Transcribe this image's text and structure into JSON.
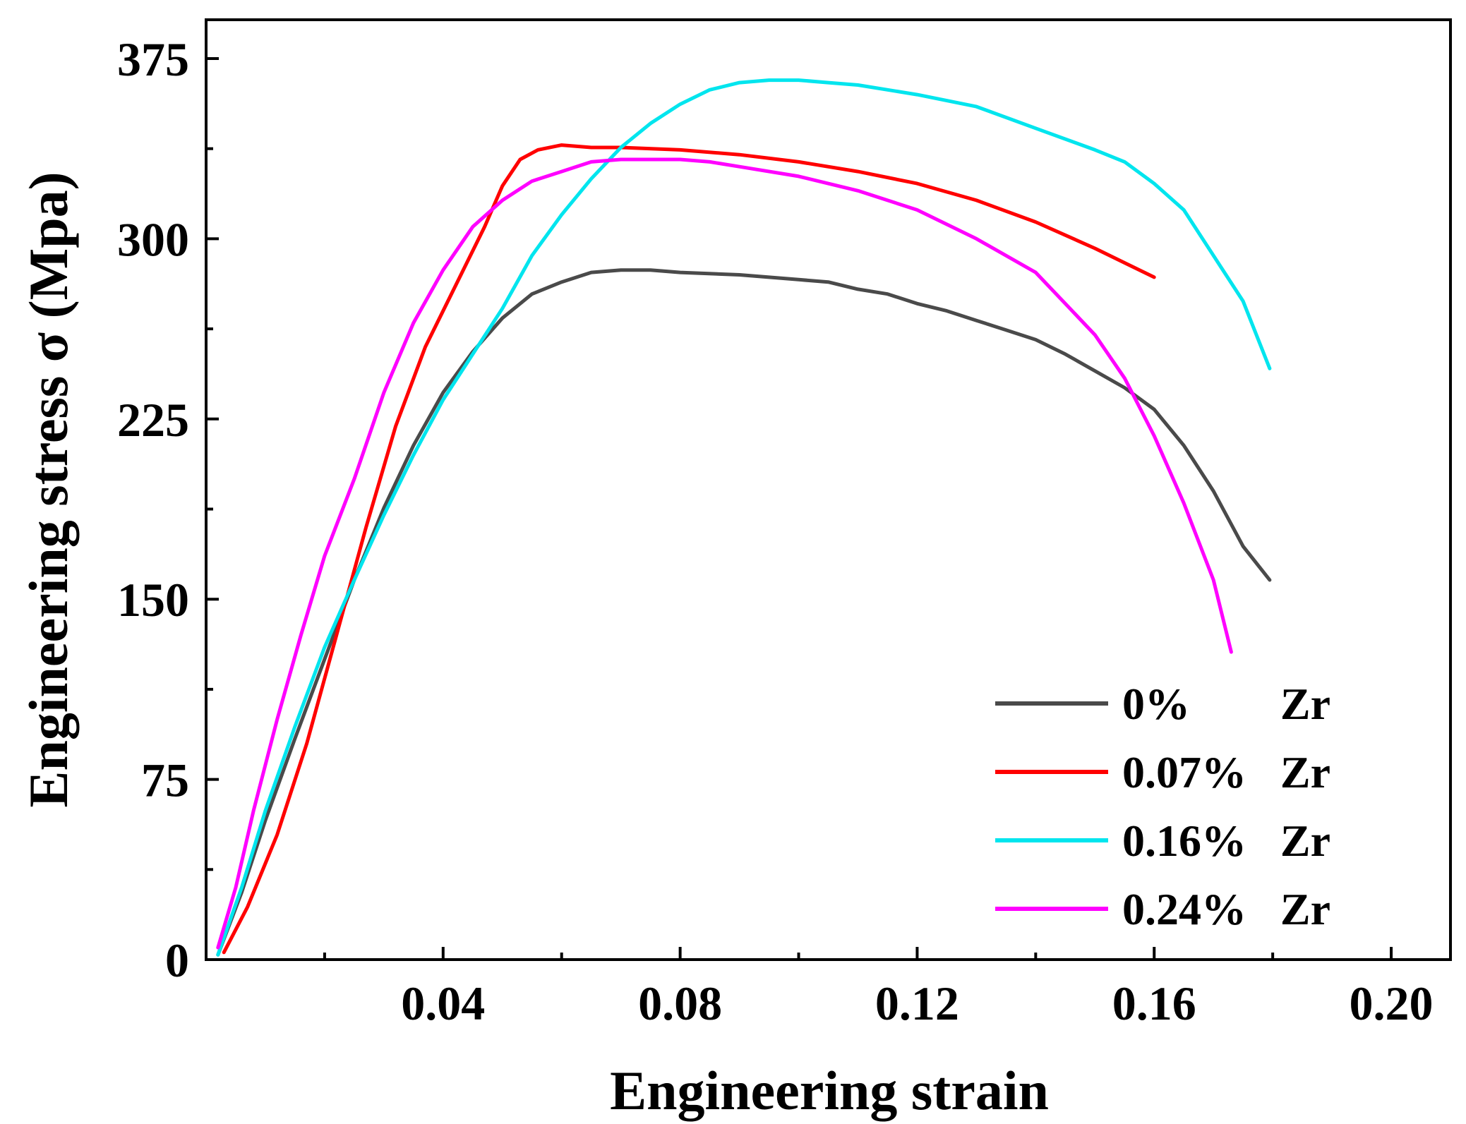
{
  "chart_data": {
    "type": "line",
    "title": "",
    "xlabel": "Engineering strain",
    "ylabel": "Engineering stress σ (Mpa)",
    "xlim": [
      0.0,
      0.21
    ],
    "ylim": [
      0,
      375
    ],
    "x_tick_values": [
      0.04,
      0.08,
      0.12,
      0.16,
      0.2
    ],
    "x_tick_labels": [
      "0.04",
      "0.08",
      "0.12",
      "0.16",
      "0.20"
    ],
    "x_minor_ticks": [
      0.02,
      0.06,
      0.1,
      0.14,
      0.18
    ],
    "y_tick_values": [
      0,
      75,
      150,
      225,
      300,
      375
    ],
    "y_tick_labels": [
      "0",
      "75",
      "150",
      "225",
      "300",
      "375"
    ],
    "y_minor_ticks": [
      37.5,
      112.5,
      187.5,
      262.5,
      337.5
    ],
    "legend_position": "bottom-right",
    "grid": false,
    "series": [
      {
        "name": "0% Zr",
        "legend_left": "0%",
        "legend_right": "Zr",
        "color": "#4a4a4a",
        "x": [
          0.002,
          0.006,
          0.01,
          0.015,
          0.02,
          0.025,
          0.03,
          0.035,
          0.04,
          0.045,
          0.05,
          0.055,
          0.06,
          0.065,
          0.07,
          0.075,
          0.08,
          0.09,
          0.1,
          0.105,
          0.11,
          0.115,
          0.12,
          0.125,
          0.13,
          0.135,
          0.14,
          0.145,
          0.15,
          0.155,
          0.16,
          0.165,
          0.17,
          0.175,
          0.1795
        ],
        "y": [
          2,
          28,
          58,
          92,
          125,
          158,
          188,
          214,
          236,
          253,
          267,
          277,
          282,
          286,
          287,
          287,
          286,
          285,
          283,
          282,
          279,
          277,
          273,
          270,
          266,
          262,
          258,
          252,
          245,
          238,
          229,
          214,
          195,
          172,
          158
        ]
      },
      {
        "name": "0.07% Zr",
        "legend_left": "0.07%",
        "legend_right": "Zr",
        "color": "#ff0000",
        "x": [
          0.003,
          0.007,
          0.012,
          0.017,
          0.022,
          0.027,
          0.032,
          0.037,
          0.042,
          0.047,
          0.05,
          0.053,
          0.056,
          0.06,
          0.065,
          0.07,
          0.08,
          0.09,
          0.1,
          0.11,
          0.12,
          0.13,
          0.14,
          0.15,
          0.155,
          0.16
        ],
        "y": [
          3,
          22,
          52,
          90,
          135,
          180,
          222,
          255,
          280,
          305,
          322,
          333,
          337,
          339,
          338,
          338,
          337,
          335,
          332,
          328,
          323,
          316,
          307,
          296,
          290,
          284
        ]
      },
      {
        "name": "0.16% Zr",
        "legend_left": "0.16%",
        "legend_right": "Zr",
        "color": "#00e5ee",
        "x": [
          0.002,
          0.006,
          0.01,
          0.015,
          0.02,
          0.025,
          0.03,
          0.035,
          0.04,
          0.045,
          0.05,
          0.055,
          0.06,
          0.065,
          0.07,
          0.075,
          0.08,
          0.085,
          0.09,
          0.095,
          0.1,
          0.105,
          0.11,
          0.115,
          0.12,
          0.13,
          0.14,
          0.15,
          0.155,
          0.16,
          0.165,
          0.17,
          0.175,
          0.1795
        ],
        "y": [
          2,
          30,
          62,
          97,
          130,
          158,
          185,
          210,
          233,
          252,
          271,
          293,
          310,
          325,
          338,
          348,
          356,
          362,
          365,
          366,
          366,
          365,
          364,
          362,
          360,
          355,
          346,
          337,
          332,
          323,
          312,
          293,
          274,
          246
        ]
      },
      {
        "name": "0.24% Zr",
        "legend_left": "0.24%",
        "legend_right": "Zr",
        "color": "#ff00ff",
        "x": [
          0.002,
          0.005,
          0.008,
          0.012,
          0.016,
          0.02,
          0.025,
          0.03,
          0.035,
          0.04,
          0.045,
          0.05,
          0.055,
          0.06,
          0.065,
          0.07,
          0.075,
          0.08,
          0.085,
          0.09,
          0.1,
          0.11,
          0.12,
          0.13,
          0.14,
          0.145,
          0.15,
          0.155,
          0.16,
          0.165,
          0.17,
          0.173
        ],
        "y": [
          5,
          30,
          62,
          100,
          135,
          168,
          200,
          236,
          265,
          287,
          305,
          316,
          324,
          328,
          332,
          333,
          333,
          333,
          332,
          330,
          326,
          320,
          312,
          300,
          286,
          273,
          260,
          242,
          218,
          190,
          158,
          128
        ]
      }
    ]
  }
}
